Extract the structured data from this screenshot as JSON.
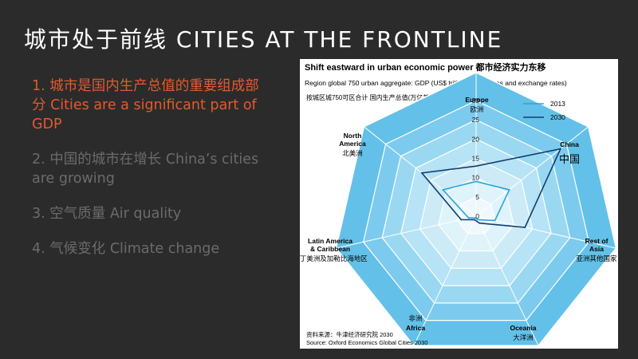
{
  "slide": {
    "title": "城市处于前线 CITIES AT THE FRONTLINE",
    "items": [
      {
        "text": "1. 城市是国内生产总值的重要组成部分 Cities are a significant part of GDP",
        "active": true
      },
      {
        "text": "2. 中国的城市在增长 China’s cities are growing",
        "active": false
      },
      {
        "text": "3. 空气质量 Air quality",
        "active": false
      },
      {
        "text": "4. 气候变化 Climate change",
        "active": false
      }
    ]
  },
  "chart_data": {
    "type": "radar",
    "title": "Shift eastward in urban economic power 都市经济实力东移",
    "subtitle": "Region global 750 urban aggregate: GDP (US$ trillion 2012 prices and exchange rates)",
    "subtitle_cn": "按城区城750可区合计 国内生产总值(万亿美元,以2012的价格和汇率)",
    "axes": [
      {
        "en": "Europe",
        "cn": "欧洲"
      },
      {
        "en": "China",
        "cn": "中国"
      },
      {
        "en": "Rest of Asia",
        "cn": "亚洲其他国家"
      },
      {
        "en": "Oceania",
        "cn": "大洋洲"
      },
      {
        "en": "Africa",
        "cn": "非洲"
      },
      {
        "en": "Latin America & Caribbean",
        "cn": "拉丁美洲及加勒比海地区"
      },
      {
        "en": "North America",
        "cn": "北美洲"
      }
    ],
    "ticks": [
      0,
      5,
      10,
      15,
      20,
      25,
      30
    ],
    "range": [
      0,
      30
    ],
    "series": [
      {
        "name": "2013",
        "color": "#2ea3dd",
        "values": [
          9,
          11,
          5,
          1,
          0.5,
          2,
          11
        ]
      },
      {
        "name": "2030",
        "color": "#123f70",
        "values": [
          13,
          28,
          13,
          2,
          1,
          4,
          18
        ]
      }
    ],
    "source": "资料来源：牛津经济研究院 2030",
    "source_en": "Source: Oxford Economics Global Cities 2030"
  }
}
